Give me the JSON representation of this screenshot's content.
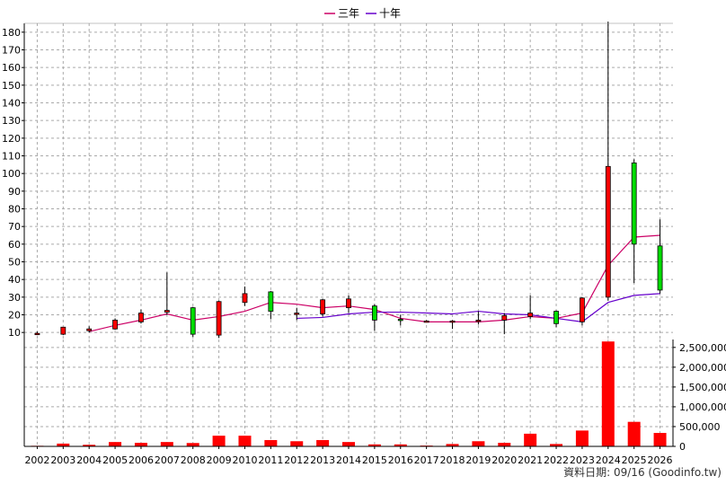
{
  "chart_data": {
    "type": "candlestick",
    "legend": {
      "placement": "top-center",
      "entries": [
        {
          "label": "三年",
          "color": "#cc0066"
        },
        {
          "label": "十年",
          "color": "#6600cc"
        }
      ]
    },
    "years": [
      "2002",
      "2003",
      "2004",
      "2005",
      "2006",
      "2007",
      "2008",
      "2009",
      "2010",
      "2011",
      "2012",
      "2013",
      "2014",
      "2015",
      "2016",
      "2017",
      "2018",
      "2019",
      "2020",
      "2021",
      "2022",
      "2023",
      "2024",
      "2025",
      "2026"
    ],
    "price_panel": {
      "ylim": [
        5,
        185
      ],
      "ticks": [
        10,
        20,
        30,
        40,
        50,
        60,
        70,
        80,
        90,
        100,
        110,
        120,
        130,
        140,
        150,
        160,
        170,
        180
      ],
      "grid": true,
      "ohlc": [
        {
          "open": 9.5,
          "high": 10.5,
          "low": 8.5,
          "close": 9.5
        },
        {
          "open": 9,
          "high": 13,
          "low": 8.5,
          "close": 13
        },
        {
          "open": 11,
          "high": 13.5,
          "low": 10,
          "close": 12
        },
        {
          "open": 12,
          "high": 18,
          "low": 11.5,
          "close": 17
        },
        {
          "open": 16,
          "high": 23,
          "low": 15,
          "close": 21
        },
        {
          "open": 21.5,
          "high": 44,
          "low": 20,
          "close": 22.5
        },
        {
          "open": 24,
          "high": 24.5,
          "low": 7.5,
          "close": 9
        },
        {
          "open": 8.5,
          "high": 28,
          "low": 7,
          "close": 27.5
        },
        {
          "open": 27,
          "high": 36,
          "low": 25,
          "close": 32
        },
        {
          "open": 33,
          "high": 33.5,
          "low": 17.5,
          "close": 22
        },
        {
          "open": 21,
          "high": 24,
          "low": 17,
          "close": 21
        },
        {
          "open": 20.5,
          "high": 29,
          "low": 19,
          "close": 28.5
        },
        {
          "open": 24,
          "high": 31,
          "low": 21,
          "close": 29
        },
        {
          "open": 25,
          "high": 26,
          "low": 11,
          "close": 17
        },
        {
          "open": 17.5,
          "high": 20,
          "low": 14,
          "close": 17
        },
        {
          "open": 16.5,
          "high": 17,
          "low": 16,
          "close": 16.5
        },
        {
          "open": 16.5,
          "high": 17,
          "low": 12,
          "close": 16.5
        },
        {
          "open": 16.5,
          "high": 22,
          "low": 14.5,
          "close": 17
        },
        {
          "open": 17,
          "high": 21,
          "low": 9,
          "close": 19.5
        },
        {
          "open": 19,
          "high": 31,
          "low": 17.5,
          "close": 21
        },
        {
          "open": 22,
          "high": 22.5,
          "low": 13,
          "close": 15
        },
        {
          "open": 16,
          "high": 30,
          "low": 14,
          "close": 29.5
        },
        {
          "open": 30,
          "high": 186,
          "low": 28,
          "close": 104
        },
        {
          "open": 106,
          "high": 108,
          "low": 38,
          "close": 60
        },
        {
          "open": 59,
          "high": 74,
          "low": 32,
          "close": 34
        }
      ],
      "series": [
        {
          "name": "三年",
          "color": "#cc0066",
          "values": [
            null,
            null,
            10.5,
            14,
            17,
            20.5,
            17,
            19,
            22,
            27,
            26,
            24,
            25,
            23,
            18,
            16,
            16,
            16,
            17,
            19,
            18,
            21,
            48,
            64,
            65
          ]
        },
        {
          "name": "十年",
          "color": "#6600cc",
          "values": [
            null,
            null,
            null,
            null,
            null,
            null,
            null,
            null,
            null,
            null,
            18,
            18.5,
            20.5,
            21.5,
            21.5,
            21,
            20.5,
            22,
            20.5,
            20,
            18,
            16,
            27,
            31,
            32
          ]
        }
      ]
    },
    "volume_panel": {
      "ylim": [
        0,
        2700000
      ],
      "ticks": [
        "0",
        "500,000",
        "1,000,000",
        "1,500,000",
        "2,000,000",
        "2,500,000"
      ],
      "tick_values": [
        0,
        500000,
        1000000,
        1500000,
        2000000,
        2500000
      ],
      "color": "#ff0000",
      "values": [
        15000,
        70000,
        40000,
        110000,
        90000,
        110000,
        85000,
        270000,
        270000,
        160000,
        130000,
        160000,
        110000,
        50000,
        50000,
        20000,
        60000,
        130000,
        90000,
        320000,
        60000,
        400000,
        2650000,
        620000,
        340000
      ]
    }
  },
  "credit": "資料日期: 09/16  (Goodinfo.tw)"
}
